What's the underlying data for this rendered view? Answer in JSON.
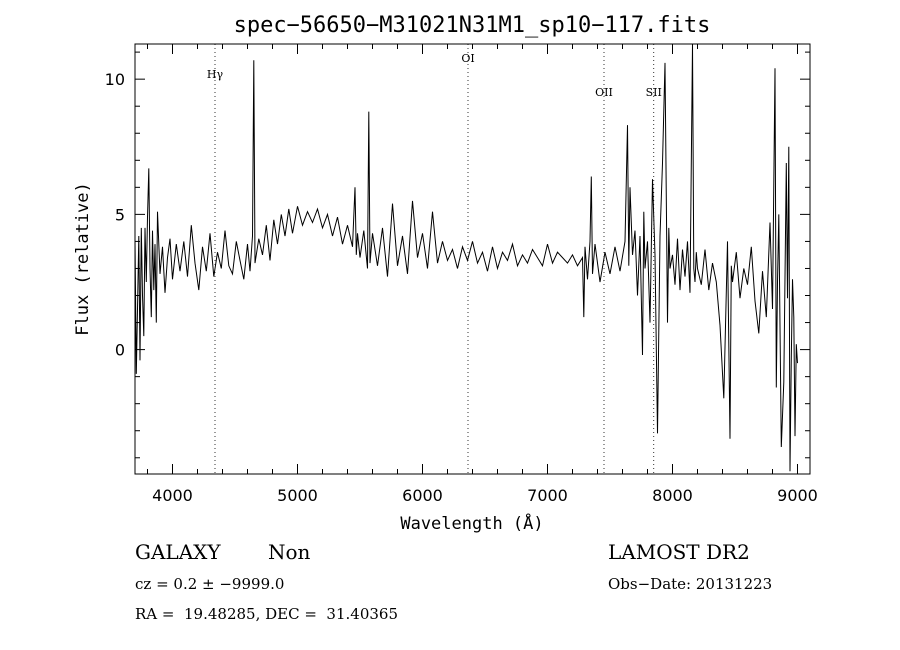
{
  "chart_data": {
    "type": "line",
    "title": "spec−56650−M31021N31M1_sp10−117.fits",
    "xlabel": "Wavelength (Å)",
    "ylabel": "Flux (relative)",
    "xlim": [
      3700,
      9100
    ],
    "ylim": [
      -4.6,
      11.3
    ],
    "xticks": [
      4000,
      5000,
      6000,
      7000,
      8000,
      9000
    ],
    "yticks": [
      0,
      5,
      10
    ],
    "grid": false,
    "series": [
      {
        "x": [
          3700,
          3710,
          3720,
          3730,
          3740,
          3750,
          3760,
          3770,
          3780,
          3790,
          3800,
          3810,
          3820,
          3830,
          3840,
          3850,
          3860,
          3870,
          3880,
          3900,
          3920,
          3940,
          3960,
          3980,
          4000,
          4030,
          4060,
          4090,
          4120,
          4150,
          4180,
          4210,
          4240,
          4270,
          4300,
          4330,
          4360,
          4390,
          4420,
          4450,
          4480,
          4510,
          4540,
          4570,
          4600,
          4620,
          4640,
          4650,
          4660,
          4690,
          4720,
          4750,
          4780,
          4810,
          4840,
          4870,
          4900,
          4930,
          4960,
          5000,
          5040,
          5080,
          5120,
          5160,
          5200,
          5240,
          5280,
          5320,
          5360,
          5400,
          5440,
          5460,
          5470,
          5480,
          5500,
          5530,
          5560,
          5570,
          5580,
          5600,
          5640,
          5680,
          5720,
          5760,
          5800,
          5840,
          5880,
          5920,
          5960,
          6000,
          6040,
          6080,
          6120,
          6160,
          6200,
          6240,
          6280,
          6320,
          6360,
          6400,
          6440,
          6480,
          6520,
          6560,
          6600,
          6640,
          6680,
          6720,
          6760,
          6800,
          6840,
          6880,
          6920,
          6960,
          7000,
          7040,
          7080,
          7120,
          7160,
          7200,
          7240,
          7280,
          7290,
          7300,
          7320,
          7340,
          7350,
          7360,
          7380,
          7420,
          7460,
          7500,
          7540,
          7580,
          7620,
          7640,
          7650,
          7660,
          7680,
          7700,
          7720,
          7740,
          7760,
          7770,
          7780,
          7800,
          7820,
          7840,
          7860,
          7880,
          7900,
          7920,
          7940,
          7960,
          7970,
          7980,
          8000,
          8020,
          8040,
          8060,
          8080,
          8100,
          8120,
          8140,
          8160,
          8170,
          8180,
          8190,
          8200,
          8230,
          8260,
          8290,
          8320,
          8350,
          8380,
          8410,
          8440,
          8460,
          8470,
          8480,
          8510,
          8540,
          8570,
          8600,
          8630,
          8660,
          8690,
          8720,
          8750,
          8780,
          8800,
          8820,
          8830,
          8840,
          8850,
          8870,
          8890,
          8910,
          8920,
          8930,
          8940,
          8950,
          8960,
          8970,
          8980,
          8990,
          9000
        ],
        "y": [
          4.1,
          -0.9,
          1.5,
          4.2,
          -0.4,
          4.5,
          2.0,
          0.5,
          4.5,
          2.5,
          4.9,
          6.7,
          3.0,
          1.2,
          4.4,
          2.2,
          3.9,
          1.0,
          5.1,
          2.8,
          3.8,
          2.1,
          3.4,
          4.1,
          2.6,
          3.9,
          2.9,
          4.0,
          2.7,
          4.6,
          3.2,
          2.2,
          3.8,
          2.9,
          4.3,
          2.7,
          3.6,
          3.0,
          4.4,
          3.1,
          2.8,
          4.0,
          3.3,
          2.6,
          3.9,
          2.9,
          4.2,
          10.7,
          3.2,
          4.1,
          3.5,
          4.6,
          3.3,
          4.8,
          3.9,
          5.0,
          4.2,
          5.2,
          4.3,
          5.3,
          4.6,
          5.1,
          4.7,
          5.2,
          4.5,
          5.0,
          4.2,
          4.9,
          3.9,
          4.6,
          3.8,
          6.0,
          3.5,
          4.3,
          3.4,
          4.4,
          3.0,
          8.8,
          3.2,
          4.3,
          3.1,
          4.5,
          2.7,
          5.4,
          3.1,
          4.2,
          2.8,
          5.5,
          3.4,
          4.3,
          3.0,
          5.1,
          3.2,
          4.0,
          3.3,
          3.7,
          3.0,
          3.8,
          3.3,
          4.0,
          3.2,
          3.6,
          2.9,
          3.8,
          3.0,
          3.6,
          3.3,
          3.9,
          3.1,
          3.5,
          3.2,
          3.7,
          3.4,
          3.1,
          3.9,
          3.2,
          3.6,
          3.4,
          3.2,
          3.5,
          3.1,
          3.4,
          1.2,
          3.8,
          2.6,
          4.0,
          6.4,
          2.8,
          3.9,
          2.5,
          3.6,
          2.8,
          3.8,
          2.9,
          4.0,
          8.3,
          3.1,
          6.0,
          3.5,
          4.4,
          2.0,
          4.2,
          -0.2,
          5.1,
          3.0,
          4.0,
          1.0,
          6.3,
          3.5,
          -3.1,
          4.2,
          6.9,
          10.6,
          1.0,
          4.5,
          3.0,
          3.5,
          2.4,
          4.1,
          2.2,
          3.7,
          2.7,
          4.0,
          2.1,
          11.4,
          3.0,
          2.5,
          3.6,
          3.0,
          2.4,
          3.7,
          2.2,
          3.2,
          2.5,
          0.9,
          -1.8,
          4.0,
          -3.3,
          3.1,
          2.5,
          3.6,
          1.9,
          3.0,
          2.4,
          3.8,
          1.8,
          0.6,
          2.9,
          1.2,
          4.7,
          1.5,
          10.4,
          -1.4,
          2.5,
          5.0,
          -3.6,
          -1.2,
          6.9,
          1.9,
          7.5,
          -4.5,
          -0.3,
          2.6,
          1.2,
          -3.2,
          0.2,
          -0.5
        ]
      }
    ],
    "line_labels": [
      {
        "name": "Hγ",
        "wavelength": 4340
      },
      {
        "name": "OI",
        "wavelength": 6364
      },
      {
        "name": "OII",
        "wavelength": 7452
      },
      {
        "name": "SII",
        "wavelength": 7850
      }
    ]
  },
  "info": {
    "object_class": "GALAXY",
    "subclass": "Non",
    "survey": "LAMOST DR2",
    "cz": "cz = 0.2 ± −9999.0",
    "obs_date": "Obs−Date: 20131223",
    "radec": "RA =  19.48285, DEC =  31.40365"
  }
}
